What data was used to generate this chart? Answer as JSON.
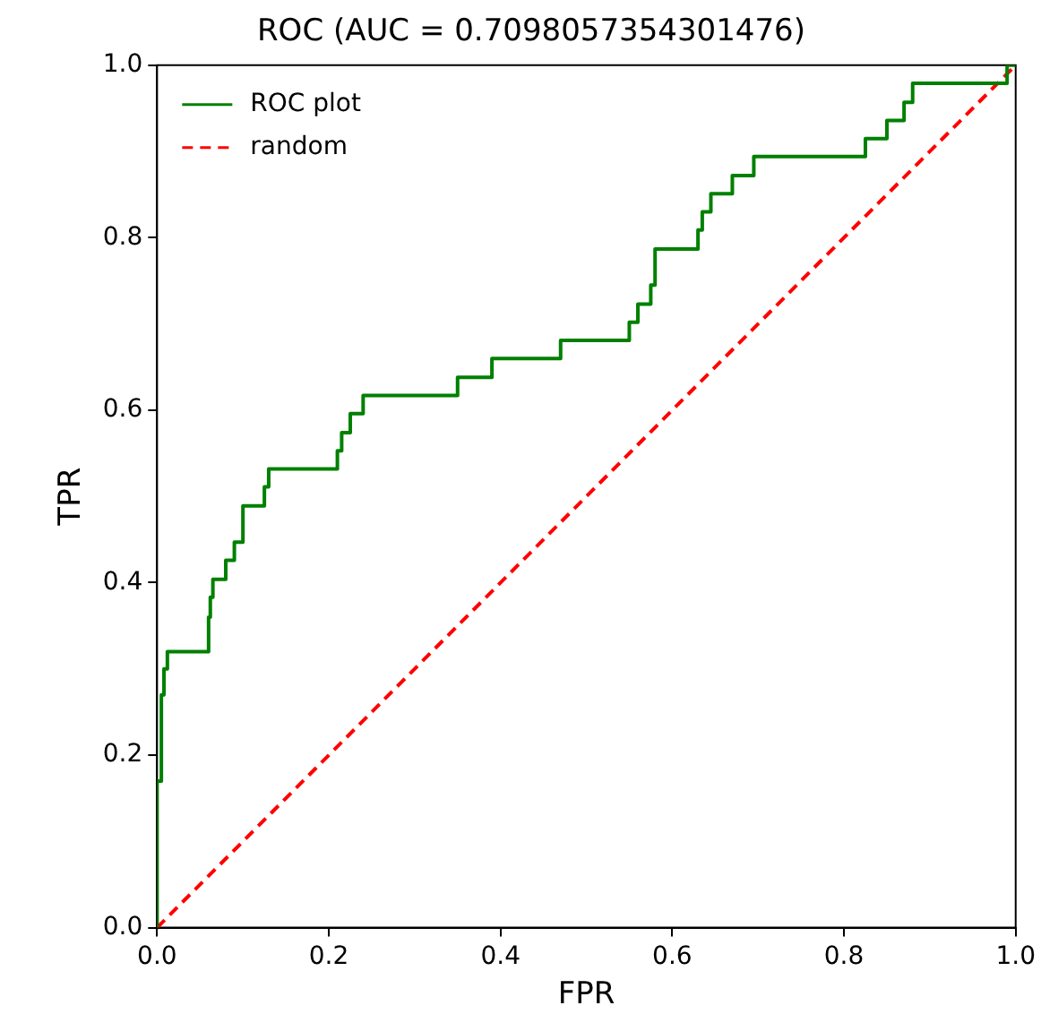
{
  "chart_data": {
    "type": "line",
    "title": "ROC (AUC = 0.7098057354301476)",
    "xlabel": "FPR",
    "ylabel": "TPR",
    "xlim": [
      0,
      1
    ],
    "ylim": [
      0,
      1
    ],
    "xticks": [
      {
        "value": 0,
        "label": "0.0"
      },
      {
        "value": 0.2,
        "label": "0.2"
      },
      {
        "value": 0.4,
        "label": "0.4"
      },
      {
        "value": 0.6,
        "label": "0.6"
      },
      {
        "value": 0.8,
        "label": "0.8"
      },
      {
        "value": 1,
        "label": "1.0"
      }
    ],
    "yticks": [
      {
        "value": 0,
        "label": "0.0"
      },
      {
        "value": 0.2,
        "label": "0.2"
      },
      {
        "value": 0.4,
        "label": "0.4"
      },
      {
        "value": 0.6,
        "label": "0.6"
      },
      {
        "value": 0.8,
        "label": "0.8"
      },
      {
        "value": 1,
        "label": "1.0"
      }
    ],
    "grid": false,
    "legend": "top left",
    "marker": "none",
    "series": [
      {
        "name": "ROC plot",
        "color": "#008000",
        "line_style": "solid",
        "x": [
          0,
          0,
          0.005,
          0.005,
          0.008,
          0.008,
          0.012,
          0.012,
          0.06,
          0.06,
          0.062,
          0.062,
          0.065,
          0.065,
          0.08,
          0.08,
          0.09,
          0.09,
          0.1,
          0.1,
          0.125,
          0.125,
          0.13,
          0.13,
          0.21,
          0.21,
          0.215,
          0.215,
          0.225,
          0.225,
          0.24,
          0.24,
          0.35,
          0.35,
          0.39,
          0.39,
          0.47,
          0.47,
          0.55,
          0.55,
          0.56,
          0.56,
          0.575,
          0.575,
          0.58,
          0.58,
          0.63,
          0.63,
          0.635,
          0.635,
          0.645,
          0.645,
          0.67,
          0.67,
          0.695,
          0.695,
          0.825,
          0.825,
          0.85,
          0.85,
          0.87,
          0.87,
          0.88,
          0.88,
          0.99,
          0.99,
          1
        ],
        "values": [
          0,
          0.17,
          0.17,
          0.27,
          0.27,
          0.3,
          0.3,
          0.32,
          0.32,
          0.36,
          0.36,
          0.383,
          0.383,
          0.404,
          0.404,
          0.426,
          0.426,
          0.447,
          0.447,
          0.489,
          0.489,
          0.511,
          0.511,
          0.532,
          0.532,
          0.553,
          0.553,
          0.574,
          0.574,
          0.596,
          0.596,
          0.617,
          0.617,
          0.638,
          0.638,
          0.66,
          0.66,
          0.681,
          0.681,
          0.702,
          0.702,
          0.723,
          0.723,
          0.745,
          0.745,
          0.787,
          0.787,
          0.809,
          0.809,
          0.83,
          0.83,
          0.851,
          0.851,
          0.872,
          0.872,
          0.894,
          0.894,
          0.915,
          0.915,
          0.936,
          0.936,
          0.957,
          0.957,
          0.979,
          0.979,
          1,
          1
        ]
      },
      {
        "name": "random",
        "color": "#ff0000",
        "line_style": "dashed",
        "x": [
          0,
          1
        ],
        "values": [
          0,
          1
        ]
      }
    ]
  }
}
